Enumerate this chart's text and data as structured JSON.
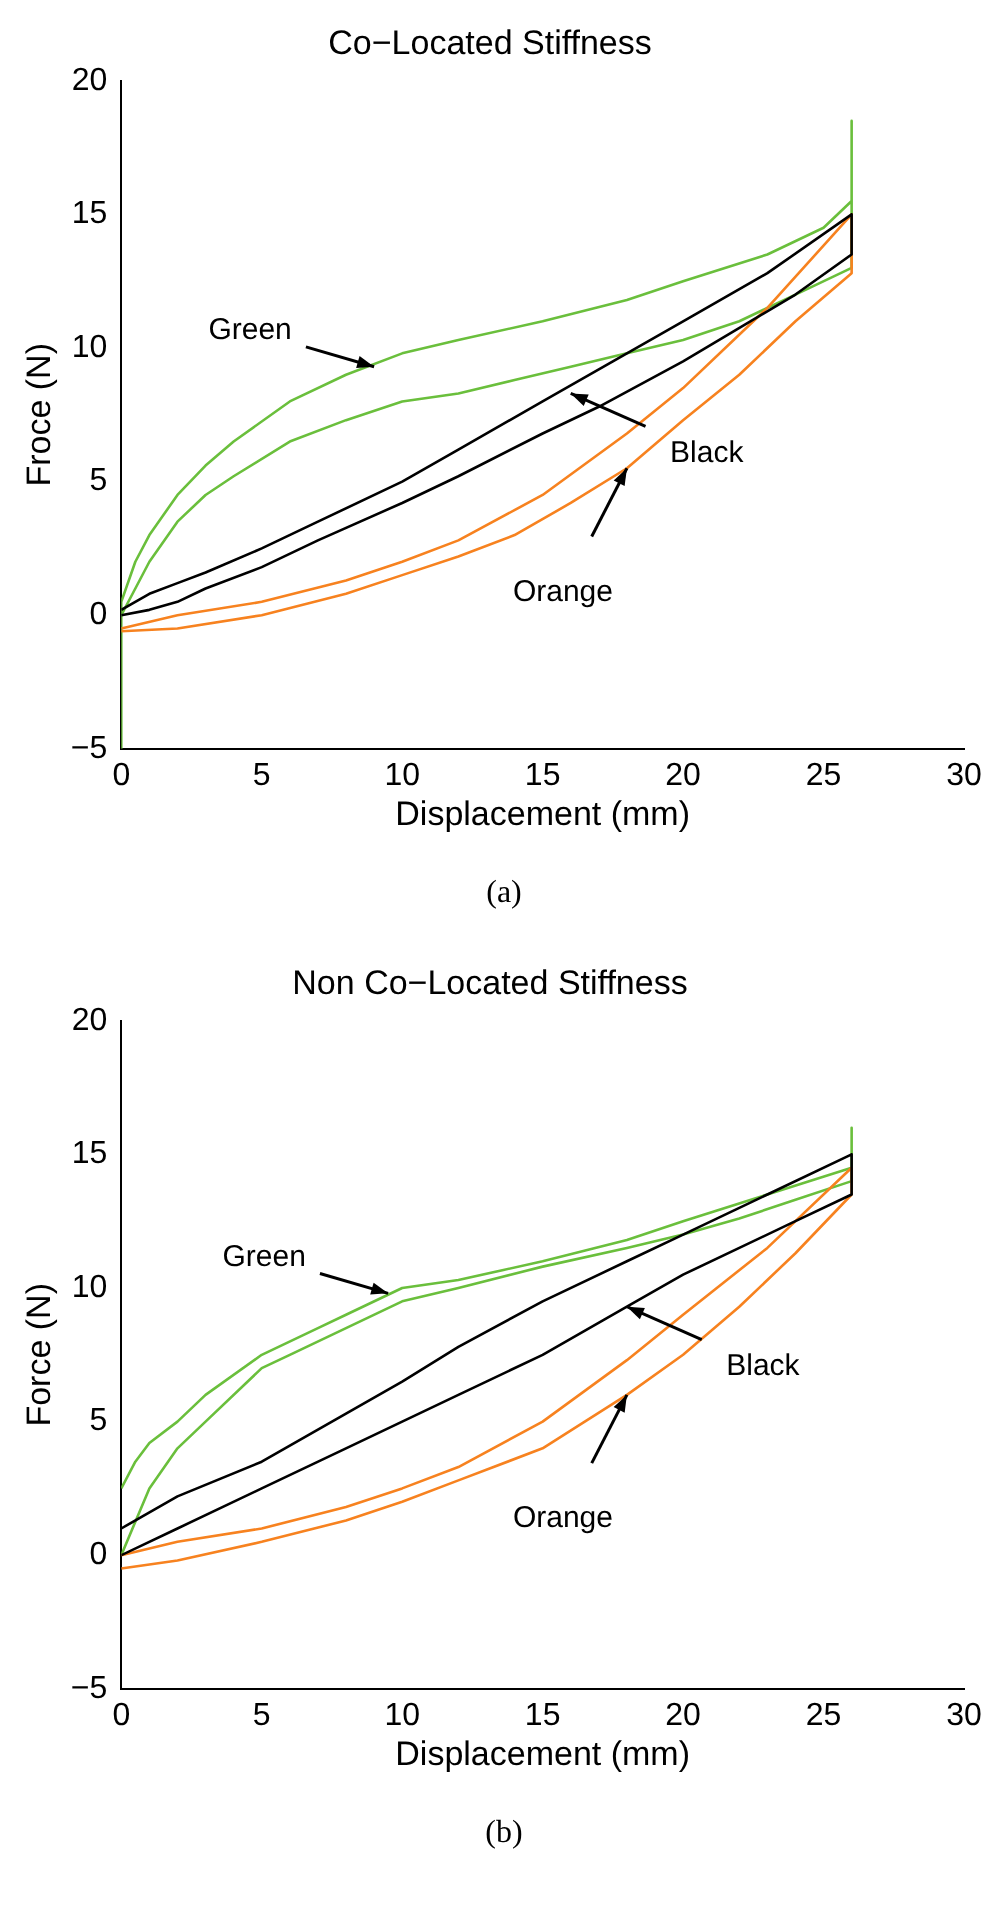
{
  "chart_data": [
    {
      "type": "line",
      "title": "Co−Located Stiffness",
      "xlabel": "Displacement (mm)",
      "ylabel": "Froce (N)",
      "xlim": [
        0,
        30
      ],
      "xticks": [
        0,
        5,
        10,
        15,
        20,
        25,
        30
      ],
      "ylim": [
        -5,
        20
      ],
      "yticks": [
        -5,
        0,
        5,
        10,
        15,
        20
      ],
      "annotations": [
        {
          "text": "Green",
          "x": 9,
          "y": 9.3
        },
        {
          "text": "Black",
          "x": 16,
          "y": 8.3
        },
        {
          "text": "Orange",
          "x": 18,
          "y": 5.5
        },
        "(a)"
      ],
      "series": [
        {
          "color": "#000000",
          "x": [
            0,
            1,
            2,
            3,
            5,
            7,
            10,
            12,
            15,
            18,
            20,
            23,
            26,
            26,
            24,
            20,
            17,
            15,
            12,
            10,
            7,
            5,
            3,
            2,
            1,
            0
          ],
          "values": [
            0.2,
            0.8,
            1.2,
            1.6,
            2.5,
            3.5,
            5,
            6.2,
            8,
            9.8,
            11,
            12.8,
            15,
            13.5,
            12,
            9.5,
            7.8,
            6.8,
            5.2,
            4.2,
            2.8,
            1.8,
            1,
            0.5,
            0.2,
            0
          ]
        },
        {
          "color": "#f7821f",
          "x": [
            0,
            2,
            5,
            8,
            10,
            12,
            15,
            18,
            20,
            23,
            26,
            26,
            24,
            22,
            20,
            18,
            16,
            14,
            12,
            10,
            8,
            5,
            2,
            0
          ],
          "values": [
            -0.5,
            0,
            0.5,
            1.3,
            2,
            2.8,
            4.5,
            6.8,
            8.5,
            11.5,
            15,
            12.8,
            11,
            9,
            7.3,
            5.5,
            4.2,
            3,
            2.2,
            1.5,
            0.8,
            0,
            -0.5,
            -0.6
          ]
        },
        {
          "color": "#6abf3c",
          "x": [
            0,
            0,
            0.5,
            1,
            2,
            3,
            4,
            6,
            8,
            10,
            12,
            15,
            18,
            20,
            23,
            25,
            26,
            26,
            26,
            24,
            22,
            20,
            18,
            16,
            14,
            12,
            10,
            8,
            6,
            4,
            3,
            2,
            1,
            0.5,
            0
          ],
          "values": [
            -5,
            0.5,
            2,
            3,
            4.5,
            5.6,
            6.5,
            8,
            9,
            9.8,
            10.3,
            11,
            11.8,
            12.5,
            13.5,
            14.5,
            15.5,
            18.5,
            13,
            12,
            11,
            10.3,
            9.8,
            9.3,
            8.8,
            8.3,
            8,
            7.3,
            6.5,
            5.2,
            4.5,
            3.5,
            2,
            1,
            0
          ]
        }
      ]
    },
    {
      "type": "line",
      "title": "Non Co−Located Stiffness",
      "xlabel": "Displacement (mm)",
      "ylabel": "Force (N)",
      "xlim": [
        0,
        30
      ],
      "xticks": [
        0,
        5,
        10,
        15,
        20,
        25,
        30
      ],
      "ylim": [
        -5,
        20
      ],
      "yticks": [
        -5,
        0,
        5,
        10,
        15,
        20
      ],
      "annotations": [
        {
          "text": "Green",
          "x": 9.5,
          "y": 9.8
        },
        {
          "text": "Black",
          "x": 18,
          "y": 9.3
        },
        {
          "text": "Orange",
          "x": 18,
          "y": 6
        },
        "(b)"
      ],
      "series": [
        {
          "color": "#000000",
          "x": [
            0,
            2,
            5,
            8,
            10,
            12,
            15,
            18,
            20,
            23,
            26,
            26,
            24,
            20,
            18,
            15,
            12,
            10,
            8,
            5,
            2,
            0
          ],
          "values": [
            1,
            2.2,
            3.5,
            5.3,
            6.5,
            7.8,
            9.5,
            11,
            12,
            13.5,
            15,
            13.5,
            12.5,
            10.5,
            9.3,
            7.5,
            6,
            5,
            4,
            2.5,
            1,
            0
          ]
        },
        {
          "color": "#f7821f",
          "x": [
            0,
            2,
            5,
            8,
            10,
            12,
            15,
            18,
            20,
            23,
            26,
            26,
            24,
            22,
            20,
            18,
            15,
            12,
            10,
            8,
            5,
            2,
            0
          ],
          "values": [
            0,
            0.5,
            1,
            1.8,
            2.5,
            3.3,
            5,
            7.3,
            9,
            11.5,
            14.5,
            13.5,
            11.3,
            9.3,
            7.5,
            6,
            4,
            2.8,
            2,
            1.3,
            0.5,
            -0.2,
            -0.5
          ]
        },
        {
          "color": "#6abf3c",
          "x": [
            0,
            0.5,
            1,
            2,
            3,
            5,
            7,
            8,
            10,
            12,
            15,
            18,
            20,
            23,
            26,
            26,
            26,
            24,
            22,
            20,
            18,
            15,
            12,
            10,
            8,
            6,
            5,
            3,
            2,
            1,
            0
          ],
          "values": [
            2.5,
            3.5,
            4.2,
            5,
            6,
            7.5,
            8.5,
            9,
            10,
            10.3,
            11,
            11.8,
            12.5,
            13.5,
            14.5,
            16,
            14,
            13.3,
            12.6,
            12,
            11.5,
            10.8,
            10,
            9.5,
            8.5,
            7.5,
            7,
            5,
            4,
            2.5,
            0
          ]
        }
      ]
    }
  ]
}
